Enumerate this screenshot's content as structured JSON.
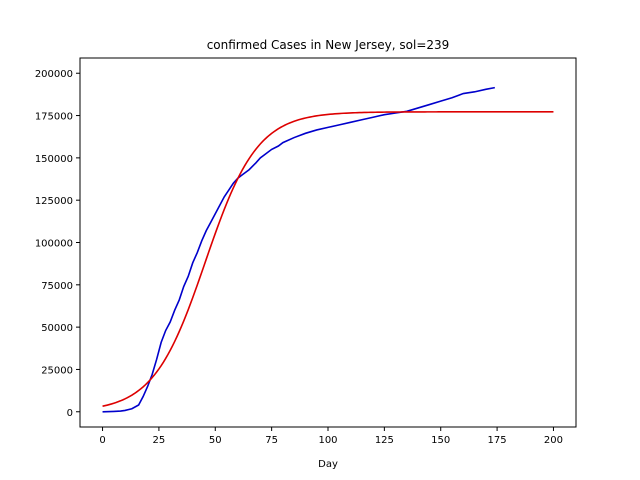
{
  "chart_data": {
    "type": "line",
    "title": "confirmed Cases in New Jersey, sol=239",
    "xlabel": "Day",
    "ylabel": "",
    "xlim": [
      -10,
      210
    ],
    "ylim": [
      -9000,
      209000
    ],
    "xticks": [
      0,
      25,
      50,
      75,
      100,
      125,
      150,
      175,
      200
    ],
    "yticks": [
      0,
      25000,
      50000,
      75000,
      100000,
      125000,
      150000,
      175000,
      200000
    ],
    "grid": false,
    "legend": "none",
    "series": [
      {
        "color": "#0000cc",
        "x": [
          0,
          5,
          8,
          10,
          13,
          16,
          18,
          20,
          22,
          24,
          26,
          28,
          30,
          32,
          34,
          36,
          38,
          40,
          42,
          44,
          46,
          48,
          50,
          52,
          54,
          56,
          58,
          60,
          62,
          65,
          68,
          70,
          72,
          75,
          78,
          80,
          85,
          90,
          95,
          100,
          105,
          110,
          115,
          120,
          125,
          130,
          135,
          140,
          145,
          150,
          155,
          158,
          160,
          165,
          170,
          174
        ],
        "y": [
          0,
          200,
          400,
          800,
          1800,
          4000,
          9000,
          15000,
          22000,
          31000,
          41000,
          48000,
          53000,
          60000,
          66000,
          74000,
          80000,
          88000,
          94000,
          101000,
          107000,
          112000,
          117000,
          122000,
          127000,
          131000,
          135000,
          138000,
          140000,
          143000,
          147000,
          150000,
          152000,
          155000,
          157000,
          159000,
          162000,
          164500,
          166500,
          168000,
          169500,
          171000,
          172500,
          174000,
          175500,
          176500,
          177500,
          179500,
          181500,
          183500,
          185500,
          187000,
          188000,
          189000,
          190500,
          191500
        ]
      },
      {
        "color": "#dd0000",
        "formula": "logistic",
        "K": 177200,
        "r": 0.087,
        "t0": 45.6,
        "x_range": [
          0,
          200
        ]
      }
    ]
  }
}
